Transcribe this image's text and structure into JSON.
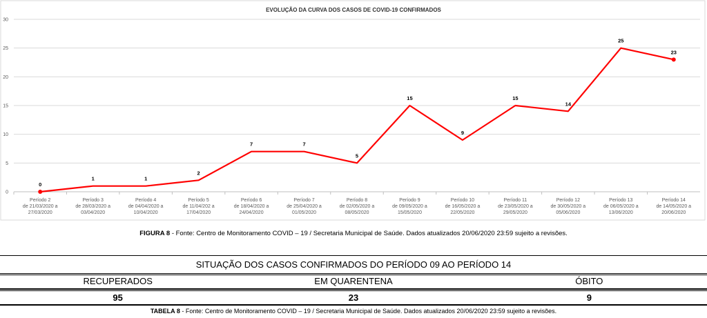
{
  "figure": {
    "caption_label": "FIGURA 8",
    "caption_text": " - Fonte: Centro de Monitoramento COVID – 19 / Secretaria Municipal de Saúde. Dados atualizados 20/06/2020 23:59 sujeito a revisões."
  },
  "chart_data": {
    "type": "line",
    "title": "EVOLUÇÃO DA CURVA DOS CASOS DE COVID-19 CONFIRMADOS",
    "xlabel": "",
    "ylabel": "",
    "ylim": [
      0,
      30
    ],
    "yticks": [
      0,
      5,
      10,
      15,
      20,
      25,
      30
    ],
    "grid": true,
    "line_color": "#ff0000",
    "categories": [
      [
        "Período 2",
        "de 21/03/2020 a",
        "27/03/2020"
      ],
      [
        "Período 3",
        "de 28/03/2020 a",
        "03/04/2020"
      ],
      [
        "Período 4",
        "de 04/04/2020 a",
        "10/04/2020"
      ],
      [
        "Período 5",
        "de 11/04/202 a",
        "17/04/2020"
      ],
      [
        "Período 6",
        "de 18/04/2020 a",
        "24/04/2020"
      ],
      [
        "Período 7",
        "de 25/04/2020 a",
        "01/05/2020"
      ],
      [
        "Período 8",
        "de 02/05/2020 a",
        "08/05/2020"
      ],
      [
        "Período 9",
        "de 09/05/2020 a",
        "15/05/2020"
      ],
      [
        "Período 10",
        "de 16/05/2020 a",
        "22/05/2020"
      ],
      [
        "Período 11",
        "de 23/05/2020 a",
        "29/05/2020"
      ],
      [
        "Período 12",
        "de 30/05/2020 a",
        "05/06/2020"
      ],
      [
        "Período 13",
        "de 06/05/2020 a",
        "13/06/2020"
      ],
      [
        "Período 14",
        "de 14/05/2020 a",
        "20/06/2020"
      ]
    ],
    "values": [
      0,
      1,
      1,
      2,
      7,
      7,
      5,
      15,
      9,
      15,
      14,
      25,
      23
    ]
  },
  "table": {
    "title": "SITUAÇÃO DOS CASOS CONFIRMADOS DO PERÍODO 09 AO PERÍODO 14",
    "headers": [
      "RECUPERADOS",
      "EM QUARENTENA",
      "ÓBITO"
    ],
    "values": [
      "95",
      "23",
      "9"
    ],
    "caption_label": "TABELA 8",
    "caption_text": " - Fonte: Centro de Monitoramento COVID – 19 / Secretaria Municipal de Saúde. Dados atualizados 20/06/2020 23:59 sujeito a revisões."
  }
}
